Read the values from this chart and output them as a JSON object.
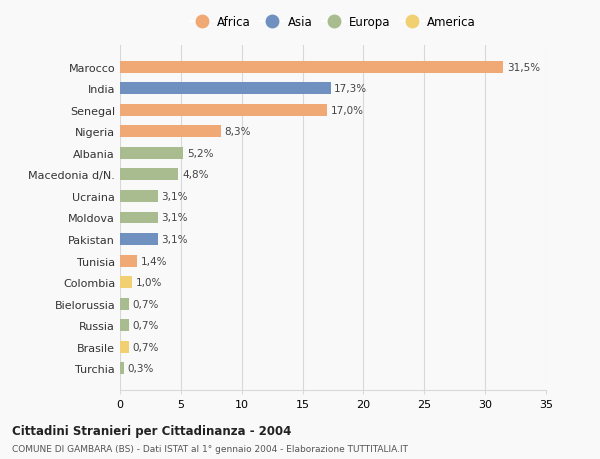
{
  "countries": [
    "Marocco",
    "India",
    "Senegal",
    "Nigeria",
    "Albania",
    "Macedonia d/N.",
    "Ucraina",
    "Moldova",
    "Pakistan",
    "Tunisia",
    "Colombia",
    "Bielorussia",
    "Russia",
    "Brasile",
    "Turchia"
  ],
  "values": [
    31.5,
    17.3,
    17.0,
    8.3,
    5.2,
    4.8,
    3.1,
    3.1,
    3.1,
    1.4,
    1.0,
    0.7,
    0.7,
    0.7,
    0.3
  ],
  "labels": [
    "31,5%",
    "17,3%",
    "17,0%",
    "8,3%",
    "5,2%",
    "4,8%",
    "3,1%",
    "3,1%",
    "3,1%",
    "1,4%",
    "1,0%",
    "0,7%",
    "0,7%",
    "0,7%",
    "0,3%"
  ],
  "continents": [
    "Africa",
    "Asia",
    "Africa",
    "Africa",
    "Europa",
    "Europa",
    "Europa",
    "Europa",
    "Asia",
    "Africa",
    "America",
    "Europa",
    "Europa",
    "America",
    "Europa"
  ],
  "continent_colors": {
    "Africa": "#F0A875",
    "Asia": "#7090C0",
    "Europa": "#A8BC90",
    "America": "#F0D070"
  },
  "legend_order": [
    "Africa",
    "Asia",
    "Europa",
    "America"
  ],
  "title": "Cittadini Stranieri per Cittadinanza - 2004",
  "subtitle": "COMUNE DI GAMBARA (BS) - Dati ISTAT al 1° gennaio 2004 - Elaborazione TUTTITALIA.IT",
  "xlim": [
    0,
    35
  ],
  "xticks": [
    0,
    5,
    10,
    15,
    20,
    25,
    30,
    35
  ],
  "background_color": "#f9f9f9",
  "grid_color": "#d8d8d8",
  "bar_height": 0.55
}
